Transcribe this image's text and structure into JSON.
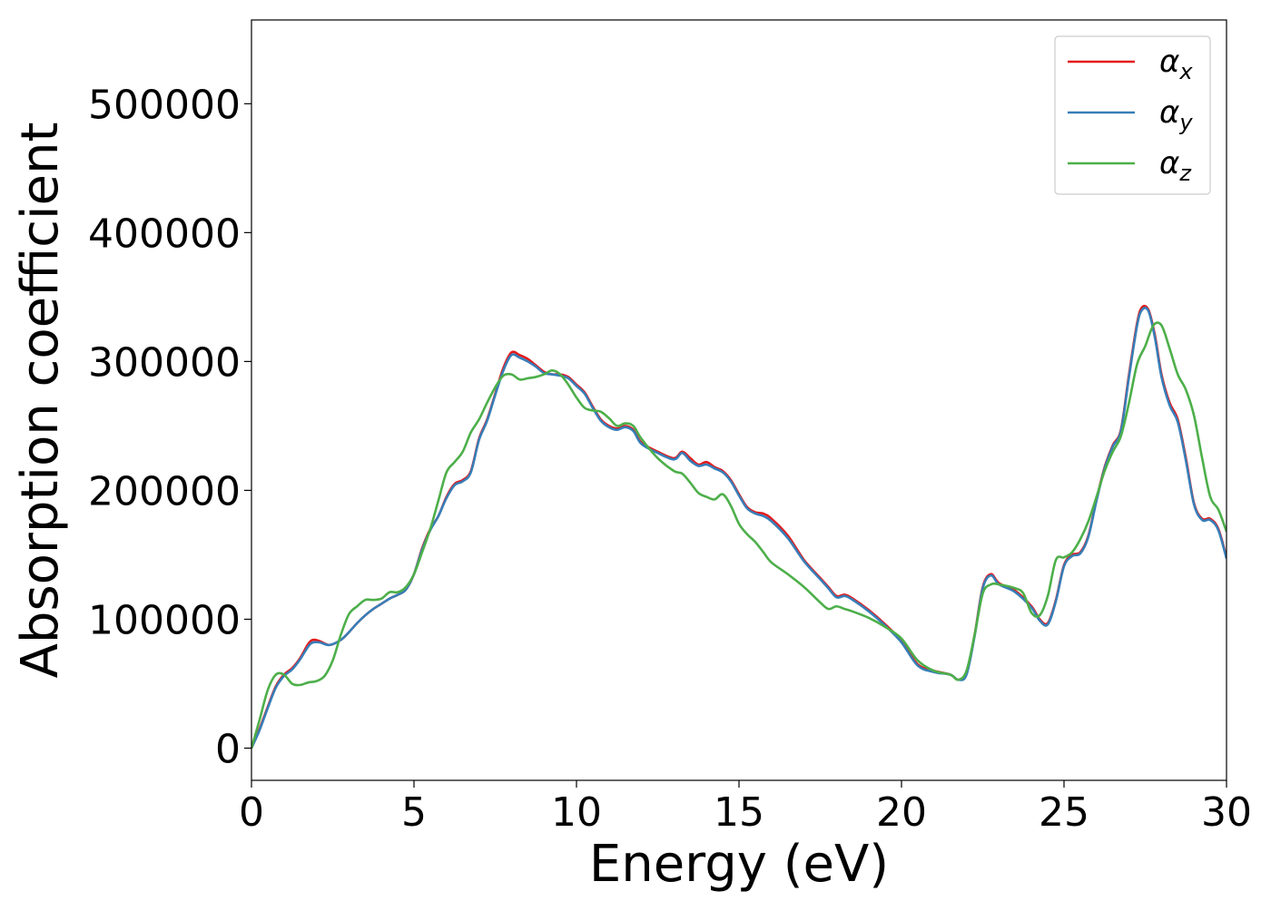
{
  "chart_data": {
    "type": "line",
    "title": "",
    "xlabel": "Energy (eV)",
    "ylabel": "Absorption coefficient",
    "xlim": [
      0,
      30
    ],
    "ylim": [
      -25000,
      565000
    ],
    "xticks": [
      0,
      5,
      10,
      15,
      20,
      25,
      30
    ],
    "yticks": [
      0,
      100000,
      200000,
      300000,
      400000,
      500000
    ],
    "xtick_labels": [
      "0",
      "5",
      "10",
      "15",
      "20",
      "25",
      "30"
    ],
    "ytick_labels": [
      "0",
      "100000",
      "200000",
      "300000",
      "400000",
      "500000"
    ],
    "grid": false,
    "legend": {
      "placement": "top-right",
      "entries": [
        {
          "base": "α",
          "sub": "x",
          "color": "#e41a1c"
        },
        {
          "base": "α",
          "sub": "y",
          "color": "#377eb8"
        },
        {
          "base": "α",
          "sub": "z",
          "color": "#4daf4a"
        }
      ]
    },
    "series": [
      {
        "name": "αx",
        "color": "#e41a1c",
        "x": [
          0,
          0.25,
          0.5,
          0.75,
          1.0,
          1.25,
          1.5,
          1.75,
          1.9,
          2.1,
          2.4,
          2.75,
          3.0,
          3.25,
          3.5,
          3.75,
          4.0,
          4.25,
          4.5,
          4.75,
          5.0,
          5.25,
          5.5,
          5.75,
          6.0,
          6.25,
          6.5,
          6.75,
          7.0,
          7.25,
          7.5,
          7.75,
          8.0,
          8.25,
          8.5,
          8.75,
          9.0,
          9.25,
          9.5,
          9.75,
          10.0,
          10.25,
          10.5,
          10.75,
          11.0,
          11.25,
          11.5,
          11.75,
          12.0,
          12.5,
          13.0,
          13.25,
          13.5,
          13.75,
          14.0,
          14.25,
          14.5,
          14.75,
          15.0,
          15.25,
          15.5,
          15.75,
          16.0,
          16.5,
          17.0,
          17.5,
          17.75,
          18.0,
          18.25,
          18.5,
          19.0,
          19.5,
          20.0,
          20.5,
          21.0,
          21.5,
          21.75,
          22.0,
          22.25,
          22.5,
          22.75,
          23.0,
          23.5,
          24.0,
          24.25,
          24.5,
          24.75,
          25.0,
          25.25,
          25.5,
          25.75,
          26.0,
          26.25,
          26.5,
          26.75,
          27.0,
          27.25,
          27.4,
          27.6,
          27.8,
          28.0,
          28.25,
          28.5,
          28.75,
          29.0,
          29.25,
          29.5,
          29.75,
          30.0
        ],
        "values": [
          0,
          15000,
          32000,
          48000,
          57000,
          62000,
          70000,
          81000,
          84000,
          83000,
          80000,
          84000,
          90000,
          97000,
          103000,
          108000,
          112000,
          116000,
          119000,
          123000,
          135000,
          155000,
          170000,
          180000,
          195000,
          205000,
          208000,
          215000,
          240000,
          255000,
          275000,
          295000,
          307000,
          305000,
          302000,
          297000,
          292000,
          290000,
          290000,
          288000,
          282000,
          276000,
          265000,
          255000,
          250000,
          248000,
          250000,
          247000,
          237000,
          230000,
          225000,
          230000,
          225000,
          220000,
          222000,
          218000,
          215000,
          208000,
          197000,
          187000,
          183000,
          182000,
          178000,
          165000,
          146000,
          132000,
          125000,
          118000,
          119000,
          116000,
          107000,
          96000,
          83000,
          65000,
          60000,
          57000,
          53000,
          58000,
          88000,
          125000,
          135000,
          128000,
          122000,
          110000,
          100000,
          97000,
          115000,
          142000,
          150000,
          152000,
          165000,
          193000,
          218000,
          235000,
          247000,
          290000,
          330000,
          342000,
          340000,
          320000,
          290000,
          268000,
          255000,
          225000,
          190000,
          178000,
          178000,
          170000,
          148000
        ]
      },
      {
        "name": "αy",
        "color": "#377eb8",
        "x": [
          0,
          0.25,
          0.5,
          0.75,
          1.0,
          1.25,
          1.5,
          1.75,
          1.9,
          2.1,
          2.4,
          2.75,
          3.0,
          3.25,
          3.5,
          3.75,
          4.0,
          4.25,
          4.5,
          4.75,
          5.0,
          5.25,
          5.5,
          5.75,
          6.0,
          6.25,
          6.5,
          6.75,
          7.0,
          7.25,
          7.5,
          7.75,
          8.0,
          8.25,
          8.5,
          8.75,
          9.0,
          9.25,
          9.5,
          9.75,
          10.0,
          10.25,
          10.5,
          10.75,
          11.0,
          11.25,
          11.5,
          11.75,
          12.0,
          12.5,
          13.0,
          13.25,
          13.5,
          13.75,
          14.0,
          14.25,
          14.5,
          14.75,
          15.0,
          15.25,
          15.5,
          15.75,
          16.0,
          16.5,
          17.0,
          17.5,
          17.75,
          18.0,
          18.25,
          18.5,
          19.0,
          19.5,
          20.0,
          20.5,
          21.0,
          21.5,
          21.75,
          22.0,
          22.25,
          22.5,
          22.75,
          23.0,
          23.5,
          24.0,
          24.25,
          24.5,
          24.75,
          25.0,
          25.25,
          25.5,
          25.75,
          26.0,
          26.25,
          26.5,
          26.75,
          27.0,
          27.25,
          27.4,
          27.6,
          27.8,
          28.0,
          28.25,
          28.5,
          28.75,
          29.0,
          29.25,
          29.5,
          29.75,
          30.0
        ],
        "values": [
          0,
          14000,
          31000,
          47000,
          56000,
          61000,
          69000,
          79000,
          82000,
          82000,
          80000,
          84000,
          90000,
          97000,
          103000,
          108000,
          112000,
          116000,
          119000,
          123000,
          135000,
          154000,
          169000,
          180000,
          194000,
          204000,
          207000,
          214000,
          239000,
          254000,
          274000,
          293000,
          305000,
          303000,
          300000,
          296000,
          291000,
          290000,
          289000,
          287000,
          281000,
          275000,
          264000,
          254000,
          249000,
          247000,
          249000,
          246000,
          236000,
          229000,
          224000,
          229000,
          223000,
          219000,
          220000,
          217000,
          214000,
          207000,
          196000,
          186000,
          182000,
          180000,
          176000,
          163000,
          145000,
          131000,
          124000,
          117000,
          118000,
          115000,
          106000,
          95000,
          82000,
          64000,
          59000,
          57000,
          53000,
          57000,
          87000,
          124000,
          134000,
          127000,
          121000,
          109000,
          99000,
          96000,
          114000,
          141000,
          149000,
          151000,
          164000,
          192000,
          217000,
          234000,
          246000,
          288000,
          328000,
          340000,
          339000,
          318000,
          288000,
          266000,
          253000,
          223000,
          189000,
          177000,
          177000,
          169000,
          147000
        ]
      },
      {
        "name": "αz",
        "color": "#4daf4a",
        "x": [
          0,
          0.25,
          0.5,
          0.75,
          1.0,
          1.25,
          1.5,
          1.75,
          2.0,
          2.25,
          2.5,
          2.75,
          3.0,
          3.25,
          3.5,
          3.75,
          4.0,
          4.25,
          4.5,
          4.75,
          5.0,
          5.25,
          5.5,
          5.75,
          6.0,
          6.25,
          6.5,
          6.75,
          7.0,
          7.25,
          7.5,
          7.75,
          8.0,
          8.25,
          8.5,
          8.75,
          9.0,
          9.25,
          9.5,
          9.75,
          10.0,
          10.25,
          10.5,
          10.75,
          11.0,
          11.25,
          11.5,
          11.75,
          12.0,
          12.5,
          13.0,
          13.25,
          13.5,
          13.75,
          14.0,
          14.25,
          14.5,
          14.75,
          15.0,
          15.25,
          15.5,
          15.75,
          16.0,
          16.5,
          17.0,
          17.5,
          17.75,
          18.0,
          18.25,
          18.5,
          19.0,
          19.5,
          20.0,
          20.5,
          21.0,
          21.5,
          21.75,
          22.0,
          22.25,
          22.5,
          22.75,
          23.0,
          23.5,
          23.75,
          24.0,
          24.25,
          24.5,
          24.75,
          25.0,
          25.25,
          25.5,
          25.75,
          26.0,
          26.25,
          26.5,
          26.75,
          27.0,
          27.25,
          27.5,
          27.75,
          28.0,
          28.25,
          28.5,
          28.75,
          29.0,
          29.25,
          29.5,
          29.75,
          30.0
        ],
        "values": [
          0,
          22000,
          45000,
          57000,
          57000,
          50000,
          49000,
          51000,
          52000,
          56000,
          68000,
          88000,
          104000,
          110000,
          115000,
          115000,
          116000,
          121000,
          121000,
          125000,
          135000,
          152000,
          170000,
          192000,
          214000,
          222000,
          230000,
          245000,
          255000,
          268000,
          280000,
          289000,
          290000,
          286000,
          287000,
          288000,
          290000,
          293000,
          290000,
          282000,
          272000,
          264000,
          262000,
          261000,
          256000,
          250000,
          252000,
          250000,
          240000,
          225000,
          215000,
          213000,
          206000,
          198000,
          195000,
          193000,
          197000,
          188000,
          174000,
          166000,
          160000,
          152000,
          144000,
          135000,
          125000,
          113000,
          108000,
          110000,
          108000,
          106000,
          101000,
          94000,
          85000,
          68000,
          60000,
          57000,
          53000,
          60000,
          88000,
          120000,
          127000,
          127000,
          124000,
          120000,
          105000,
          103000,
          118000,
          146000,
          148000,
          152000,
          162000,
          176000,
          195000,
          215000,
          230000,
          242000,
          268000,
          298000,
          312000,
          328000,
          328000,
          310000,
          290000,
          278000,
          258000,
          225000,
          195000,
          185000,
          168000
        ]
      }
    ]
  }
}
